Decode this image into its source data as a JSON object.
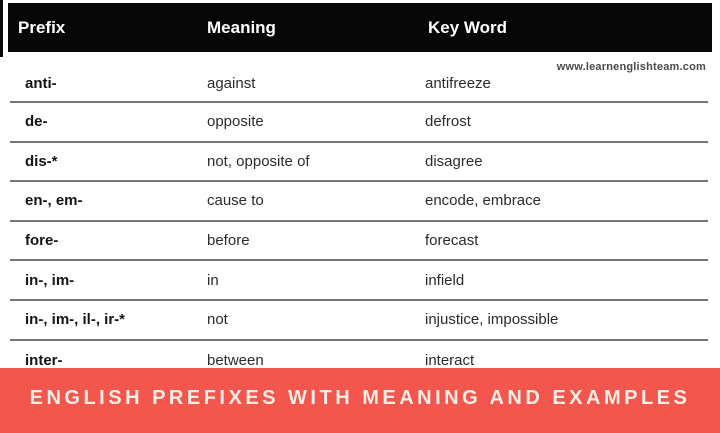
{
  "table": {
    "headers": [
      "Prefix",
      "Meaning",
      "Key Word"
    ],
    "rows": [
      {
        "prefix": "anti-",
        "meaning": "against",
        "key_word": "antifreeze"
      },
      {
        "prefix": "de-",
        "meaning": "opposite",
        "key_word": "defrost"
      },
      {
        "prefix": "dis-*",
        "meaning": "not, opposite of",
        "key_word": "disagree"
      },
      {
        "prefix": "en-, em-",
        "meaning": "cause to",
        "key_word": "encode, embrace"
      },
      {
        "prefix": "fore-",
        "meaning": "before",
        "key_word": "forecast"
      },
      {
        "prefix": "in-, im-",
        "meaning": "in",
        "key_word": "infield"
      },
      {
        "prefix": "in-, im-, il-, ir-*",
        "meaning": "not",
        "key_word": "injustice, impossible"
      },
      {
        "prefix": "inter-",
        "meaning": "between",
        "key_word": "interact"
      }
    ]
  },
  "watermark": "www.learnenglishteam.com",
  "banner": {
    "text": "ENGLISH PREFIXES WITH MEANING AND EXAMPLES",
    "bg_color": "#f3564c",
    "text_color": "#f8eee6"
  },
  "colors": {
    "header_bg": "#070707",
    "header_text": "#ffffff",
    "divider": "#767676",
    "prefix_text": "#141414",
    "cell_text": "#2b2b2b",
    "watermark_text": "#4a4a4a"
  }
}
